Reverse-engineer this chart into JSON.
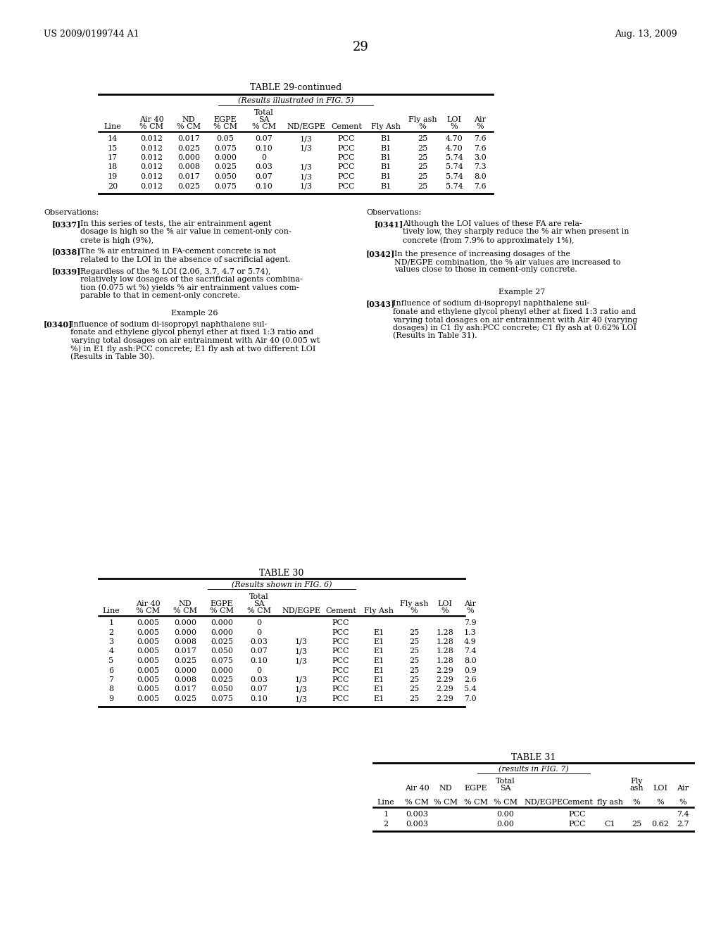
{
  "page_number": "29",
  "patent_number": "US 2009/0199744 A1",
  "patent_date": "Aug. 13, 2009",
  "bg_color": "#ffffff",
  "table29_title": "TABLE 29-continued",
  "table29_subtitle": "(Results illustrated in FIG. 5)",
  "table29_col_labels_line1": [
    "",
    "Air 40",
    "ND",
    "EGPE",
    "Total",
    "",
    "",
    "",
    "Fly ash",
    "LOI",
    "Air"
  ],
  "table29_col_labels_line2": [
    "",
    "% CM",
    "% CM",
    "% CM",
    "SA",
    "",
    "",
    "",
    "%",
    "%",
    "%"
  ],
  "table29_col_labels_line3": [
    "Line",
    "% CM",
    "% CM",
    "% CM",
    "% CM",
    "ND/EGPE",
    "Cement",
    "Fly Ash",
    "%",
    "%",
    "%"
  ],
  "table29_data": [
    [
      "14",
      "0.012",
      "0.017",
      "0.05",
      "0.07",
      "1/3",
      "PCC",
      "B1",
      "25",
      "4.70",
      "7.6"
    ],
    [
      "15",
      "0.012",
      "0.025",
      "0.075",
      "0.10",
      "1/3",
      "PCC",
      "B1",
      "25",
      "4.70",
      "7.6"
    ],
    [
      "17",
      "0.012",
      "0.000",
      "0.000",
      "0",
      "",
      "PCC",
      "B1",
      "25",
      "5.74",
      "3.0"
    ],
    [
      "18",
      "0.012",
      "0.008",
      "0.025",
      "0.03",
      "1/3",
      "PCC",
      "B1",
      "25",
      "5.74",
      "7.3"
    ],
    [
      "19",
      "0.012",
      "0.017",
      "0.050",
      "0.07",
      "1/3",
      "PCC",
      "B1",
      "25",
      "5.74",
      "8.0"
    ],
    [
      "20",
      "0.012",
      "0.025",
      "0.075",
      "0.10",
      "1/3",
      "PCC",
      "B1",
      "25",
      "5.74",
      "7.6"
    ]
  ],
  "table30_title": "TABLE 30",
  "table30_subtitle": "(Results shown in FIG. 6)",
  "table30_data": [
    [
      "1",
      "0.005",
      "0.000",
      "0.000",
      "0",
      "",
      "PCC",
      "",
      "",
      "",
      "7.9"
    ],
    [
      "2",
      "0.005",
      "0.000",
      "0.000",
      "0",
      "",
      "PCC",
      "E1",
      "25",
      "1.28",
      "1.3"
    ],
    [
      "3",
      "0.005",
      "0.008",
      "0.025",
      "0.03",
      "1/3",
      "PCC",
      "E1",
      "25",
      "1.28",
      "4.9"
    ],
    [
      "4",
      "0.005",
      "0.017",
      "0.050",
      "0.07",
      "1/3",
      "PCC",
      "E1",
      "25",
      "1.28",
      "7.4"
    ],
    [
      "5",
      "0.005",
      "0.025",
      "0.075",
      "0.10",
      "1/3",
      "PCC",
      "E1",
      "25",
      "1.28",
      "8.0"
    ],
    [
      "6",
      "0.005",
      "0.000",
      "0.000",
      "0",
      "",
      "PCC",
      "E1",
      "25",
      "2.29",
      "0.9"
    ],
    [
      "7",
      "0.005",
      "0.008",
      "0.025",
      "0.03",
      "1/3",
      "PCC",
      "E1",
      "25",
      "2.29",
      "2.6"
    ],
    [
      "8",
      "0.005",
      "0.017",
      "0.050",
      "0.07",
      "1/3",
      "PCC",
      "E1",
      "25",
      "2.29",
      "5.4"
    ],
    [
      "9",
      "0.005",
      "0.025",
      "0.075",
      "0.10",
      "1/3",
      "PCC",
      "E1",
      "25",
      "2.29",
      "7.0"
    ]
  ],
  "table31_title": "TABLE 31",
  "table31_subtitle": "(results in FIG. 7)",
  "table31_data": [
    [
      "1",
      "0.003",
      "",
      "",
      "0.00",
      "",
      "PCC",
      "",
      "",
      "",
      "7.4"
    ],
    [
      "2",
      "0.003",
      "",
      "",
      "0.00",
      "",
      "PCC",
      "C1",
      "25",
      "0.62",
      "2.7"
    ]
  ]
}
